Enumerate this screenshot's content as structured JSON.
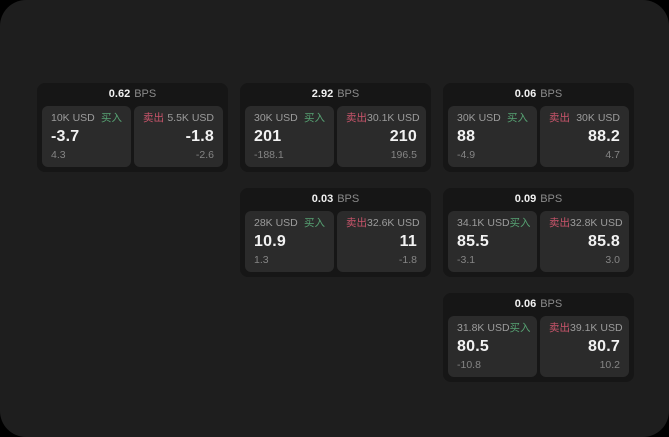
{
  "colors": {
    "outer": "#000000",
    "surface": "#1e1e1e",
    "card": "#161616",
    "panel": "#2b2b2b",
    "buy": "#57a273",
    "sell": "#c9556b",
    "value_text": "#f2f2f2",
    "muted_text": "#9c9c9c",
    "sub_text": "#858585",
    "unit_text": "#8b8b8b"
  },
  "cards": [
    {
      "spread": "0.62",
      "spread_unit": "BPS",
      "buy": {
        "size": "10K USD",
        "side_label": "买入",
        "price": "-3.7",
        "change": "4.3"
      },
      "sell": {
        "side_label": "卖出",
        "size": "5.5K USD",
        "price": "-1.8",
        "change": "-2.6"
      }
    },
    {
      "spread": "2.92",
      "spread_unit": "BPS",
      "buy": {
        "size": "30K USD",
        "side_label": "买入",
        "price": "201",
        "change": "-188.1"
      },
      "sell": {
        "side_label": "卖出",
        "size": "30.1K USD",
        "price": "210",
        "change": "196.5"
      }
    },
    {
      "spread": "0.06",
      "spread_unit": "BPS",
      "buy": {
        "size": "30K USD",
        "side_label": "买入",
        "price": "88",
        "change": "-4.9"
      },
      "sell": {
        "side_label": "卖出",
        "size": "30K USD",
        "price": "88.2",
        "change": "4.7"
      }
    },
    {
      "spread": "0.03",
      "spread_unit": "BPS",
      "buy": {
        "size": "28K USD",
        "side_label": "买入",
        "price": "10.9",
        "change": "1.3"
      },
      "sell": {
        "side_label": "卖出",
        "size": "32.6K USD",
        "price": "11",
        "change": "-1.8"
      }
    },
    {
      "spread": "0.09",
      "spread_unit": "BPS",
      "buy": {
        "size": "34.1K USD",
        "side_label": "买入",
        "price": "85.5",
        "change": "-3.1"
      },
      "sell": {
        "side_label": "卖出",
        "size": "32.8K USD",
        "price": "85.8",
        "change": "3.0"
      }
    },
    {
      "spread": "0.06",
      "spread_unit": "BPS",
      "buy": {
        "size": "31.8K USD",
        "side_label": "买入",
        "price": "80.5",
        "change": "-10.8"
      },
      "sell": {
        "side_label": "卖出",
        "size": "39.1K USD",
        "price": "80.7",
        "change": "10.2"
      }
    }
  ]
}
